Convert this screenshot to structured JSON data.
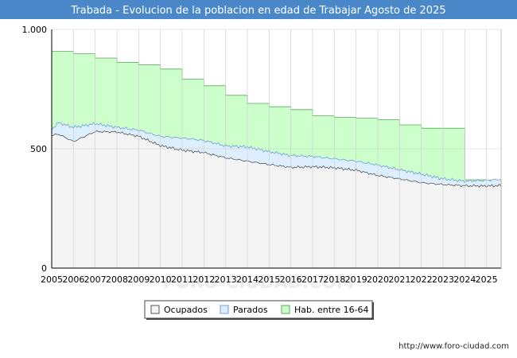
{
  "header": {
    "title": "Trabada - Evolucion de la poblacion en edad de Trabajar Agosto de 2025"
  },
  "footer": {
    "url": "http://www.foro-ciudad.com"
  },
  "watermark": "FORO-CIUDAD.COM",
  "colors": {
    "title_bg": "#4a88c9",
    "title_text": "#ffffff",
    "ocupados_fill": "#f4f4f4",
    "ocupados_line": "#555555",
    "parados_fill": "#ddeeff",
    "parados_line": "#6f9fd6",
    "hab_fill": "#ccffcc",
    "hab_line": "#55aa55",
    "grid": "#cccccc"
  },
  "chart_data": {
    "type": "area",
    "title": "Trabada - Evolucion de la poblacion en edad de Trabajar Agosto de 2025",
    "xlabel": "",
    "ylabel": "",
    "xlim": [
      2005,
      2025.67
    ],
    "ylim": [
      0,
      1000
    ],
    "y_ticks": [
      {
        "value": 0,
        "label": "0"
      },
      {
        "value": 500,
        "label": "500"
      },
      {
        "value": 1000,
        "label": "1.000"
      }
    ],
    "x_ticks": [
      "2005",
      "2006",
      "2007",
      "2008",
      "2009",
      "2010",
      "2011",
      "2012",
      "2013",
      "2014",
      "2015",
      "2016",
      "2017",
      "2018",
      "2019",
      "2020",
      "2021",
      "2022",
      "2023",
      "2024",
      "2025"
    ],
    "legend": {
      "position": "bottom-center",
      "items": [
        {
          "key": "ocupados",
          "label": "Ocupados"
        },
        {
          "key": "parados",
          "label": "Parados"
        },
        {
          "key": "hab",
          "label": "Hab. entre 16-64"
        }
      ]
    },
    "series": [
      {
        "name": "Hab. entre 16-64",
        "type": "step",
        "points": [
          [
            2005,
            908
          ],
          [
            2006,
            898
          ],
          [
            2007,
            880
          ],
          [
            2008,
            862
          ],
          [
            2009,
            852
          ],
          [
            2010,
            834
          ],
          [
            2011,
            792
          ],
          [
            2012,
            764
          ],
          [
            2013,
            724
          ],
          [
            2014,
            690
          ],
          [
            2015,
            676
          ],
          [
            2016,
            664
          ],
          [
            2017,
            638
          ],
          [
            2018,
            632
          ],
          [
            2019,
            628
          ],
          [
            2020,
            622
          ],
          [
            2021,
            600
          ],
          [
            2022,
            586
          ],
          [
            2023,
            586
          ],
          [
            2023.95,
            586
          ],
          [
            2024,
            370
          ],
          [
            2025,
            368
          ],
          [
            2025.67,
            368
          ]
        ]
      },
      {
        "name": "Parados",
        "points": [
          [
            2005,
            580
          ],
          [
            2005.3,
            610
          ],
          [
            2006,
            590
          ],
          [
            2007,
            605
          ],
          [
            2008,
            590
          ],
          [
            2009,
            578
          ],
          [
            2010,
            552
          ],
          [
            2011,
            545
          ],
          [
            2012,
            535
          ],
          [
            2013,
            512
          ],
          [
            2014,
            508
          ],
          [
            2015,
            488
          ],
          [
            2016,
            472
          ],
          [
            2017,
            468
          ],
          [
            2018,
            458
          ],
          [
            2019,
            448
          ],
          [
            2020,
            432
          ],
          [
            2021,
            412
          ],
          [
            2022,
            394
          ],
          [
            2023,
            374
          ],
          [
            2024,
            364
          ],
          [
            2025,
            368
          ],
          [
            2025.67,
            372
          ]
        ]
      },
      {
        "name": "Ocupados",
        "points": [
          [
            2005,
            555
          ],
          [
            2005.3,
            562
          ],
          [
            2006,
            530
          ],
          [
            2007,
            572
          ],
          [
            2008,
            570
          ],
          [
            2009,
            552
          ],
          [
            2010,
            513
          ],
          [
            2011,
            494
          ],
          [
            2012,
            484
          ],
          [
            2013,
            462
          ],
          [
            2014,
            448
          ],
          [
            2015,
            434
          ],
          [
            2016,
            422
          ],
          [
            2017,
            425
          ],
          [
            2018,
            420
          ],
          [
            2019,
            410
          ],
          [
            2020,
            388
          ],
          [
            2021,
            374
          ],
          [
            2022,
            358
          ],
          [
            2023,
            350
          ],
          [
            2024,
            345
          ],
          [
            2025,
            344
          ],
          [
            2025.67,
            346
          ]
        ]
      }
    ]
  }
}
